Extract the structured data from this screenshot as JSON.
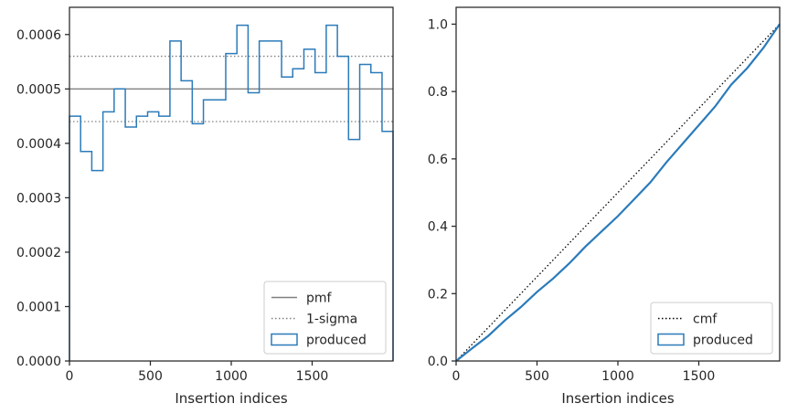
{
  "chart_data": [
    {
      "type": "histogram",
      "xlabel": "Insertion indices",
      "ylabel": "",
      "xlim": [
        0,
        2000
      ],
      "ylim": [
        0,
        0.00065
      ],
      "xticks": [
        0,
        500,
        1000,
        1500
      ],
      "xtick_labels": [
        "0",
        "500",
        "1000",
        "1500"
      ],
      "yticks": [
        0,
        0.0001,
        0.0002,
        0.0003,
        0.0004,
        0.0005,
        0.0006
      ],
      "ytick_labels": [
        "0.0000",
        "0.0001",
        "0.0002",
        "0.0003",
        "0.0004",
        "0.0005",
        "0.0006"
      ],
      "grid": false,
      "legend_position": "lower-right",
      "reference_lines": [
        {
          "name": "pmf",
          "y": 0.0005,
          "style": "solid",
          "color": "#808080"
        },
        {
          "name": "1-sigma",
          "y": 0.00056,
          "style": "dotted",
          "color": "#808080"
        },
        {
          "name": "1-sigma",
          "y": 0.00044,
          "style": "dotted",
          "color": "#808080"
        }
      ],
      "series": [
        {
          "name": "produced",
          "color": "#2b7bba",
          "bin_edges": [
            0,
            69,
            138,
            207,
            276,
            345,
            414,
            483,
            552,
            621,
            690,
            759,
            828,
            897,
            966,
            1035,
            1104,
            1173,
            1242,
            1311,
            1380,
            1449,
            1518,
            1587,
            1656,
            1725,
            1794,
            1863,
            1932,
            2000
          ],
          "values": [
            0.00045,
            0.000385,
            0.00035,
            0.000458,
            0.0005,
            0.00043,
            0.00045,
            0.000458,
            0.00045,
            0.000588,
            0.000515,
            0.000436,
            0.00048,
            0.00048,
            0.000565,
            0.000617,
            0.000493,
            0.000588,
            0.000588,
            0.000522,
            0.000537,
            0.000573,
            0.00053,
            0.000617,
            0.00056,
            0.000407,
            0.000545,
            0.00053,
            0.000422
          ]
        }
      ],
      "legend": [
        "pmf",
        "1-sigma",
        "produced"
      ]
    },
    {
      "type": "line",
      "xlabel": "Insertion indices",
      "ylabel": "",
      "xlim": [
        0,
        2000
      ],
      "ylim": [
        0,
        1.05
      ],
      "xticks": [
        0,
        500,
        1000,
        1500
      ],
      "xtick_labels": [
        "0",
        "500",
        "1000",
        "1500"
      ],
      "yticks": [
        0,
        0.2,
        0.4,
        0.6,
        0.8,
        1.0
      ],
      "ytick_labels": [
        "0.0",
        "0.2",
        "0.4",
        "0.6",
        "0.8",
        "1.0"
      ],
      "grid": false,
      "legend_position": "lower-right",
      "series": [
        {
          "name": "cmf",
          "style": "dotted",
          "color": "#000000",
          "x": [
            0,
            2000
          ],
          "y": [
            0,
            1.0
          ]
        },
        {
          "name": "produced",
          "style": "step",
          "color": "#2b7bba",
          "x": [
            0,
            100,
            200,
            300,
            400,
            500,
            600,
            700,
            800,
            900,
            1000,
            1100,
            1200,
            1300,
            1400,
            1500,
            1600,
            1700,
            1800,
            1900,
            2000
          ],
          "y": [
            0,
            0.038,
            0.075,
            0.12,
            0.16,
            0.205,
            0.245,
            0.29,
            0.34,
            0.385,
            0.43,
            0.48,
            0.53,
            0.59,
            0.645,
            0.7,
            0.755,
            0.82,
            0.87,
            0.93,
            1.0
          ]
        }
      ],
      "legend": [
        "cmf",
        "produced"
      ]
    }
  ]
}
